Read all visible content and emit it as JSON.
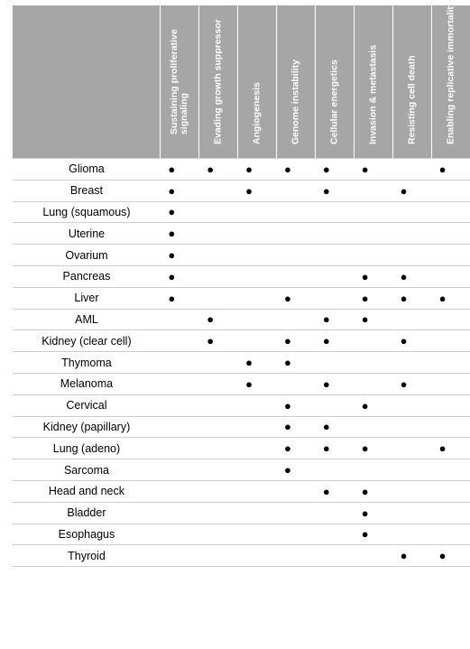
{
  "headers": [
    "Sustaining proliferative signaling",
    "Evading growth suppressor",
    "Angiogenesis",
    "Genome instability",
    "Cellular energetics",
    "Invasion & metastasis",
    "Resisting cell death",
    "Enabling replicative immortality"
  ],
  "marker": "●",
  "rows": [
    {
      "type": "Glioma",
      "marks": [
        1,
        1,
        1,
        1,
        1,
        1,
        0,
        1
      ]
    },
    {
      "type": "Breast",
      "marks": [
        1,
        0,
        1,
        0,
        1,
        0,
        1,
        0
      ]
    },
    {
      "type": "Lung (squamous)",
      "marks": [
        1,
        0,
        0,
        0,
        0,
        0,
        0,
        0
      ]
    },
    {
      "type": "Uterine",
      "marks": [
        1,
        0,
        0,
        0,
        0,
        0,
        0,
        0
      ]
    },
    {
      "type": "Ovarium",
      "marks": [
        1,
        0,
        0,
        0,
        0,
        0,
        0,
        0
      ]
    },
    {
      "type": "Pancreas",
      "marks": [
        1,
        0,
        0,
        0,
        0,
        1,
        1,
        0
      ]
    },
    {
      "type": "Liver",
      "marks": [
        1,
        0,
        0,
        1,
        0,
        1,
        1,
        1
      ]
    },
    {
      "type": "AML",
      "marks": [
        0,
        1,
        0,
        0,
        1,
        1,
        0,
        0
      ]
    },
    {
      "type": "Kidney (clear cell)",
      "marks": [
        0,
        1,
        0,
        1,
        1,
        0,
        1,
        0
      ]
    },
    {
      "type": "Thymoma",
      "marks": [
        0,
        0,
        1,
        1,
        0,
        0,
        0,
        0
      ]
    },
    {
      "type": "Melanoma",
      "marks": [
        0,
        0,
        1,
        0,
        1,
        0,
        1,
        0
      ]
    },
    {
      "type": "Cervical",
      "marks": [
        0,
        0,
        0,
        1,
        0,
        1,
        0,
        0
      ]
    },
    {
      "type": "Kidney (papillary)",
      "marks": [
        0,
        0,
        0,
        1,
        1,
        0,
        0,
        0
      ]
    },
    {
      "type": "Lung (adeno)",
      "marks": [
        0,
        0,
        0,
        1,
        1,
        1,
        0,
        1
      ]
    },
    {
      "type": "Sarcoma",
      "marks": [
        0,
        0,
        0,
        1,
        0,
        0,
        0,
        0
      ]
    },
    {
      "type": "Head and neck",
      "marks": [
        0,
        0,
        0,
        0,
        1,
        1,
        0,
        0
      ]
    },
    {
      "type": "Bladder",
      "marks": [
        0,
        0,
        0,
        0,
        0,
        1,
        0,
        0
      ]
    },
    {
      "type": "Esophagus",
      "marks": [
        0,
        0,
        0,
        0,
        0,
        1,
        0,
        0
      ]
    },
    {
      "type": "Thyroid",
      "marks": [
        0,
        0,
        0,
        0,
        0,
        0,
        1,
        1
      ]
    }
  ],
  "colors": {
    "header_bg": "#a6a6a6",
    "header_text": "#ffffff",
    "row_divider": "#d0d0d0"
  }
}
